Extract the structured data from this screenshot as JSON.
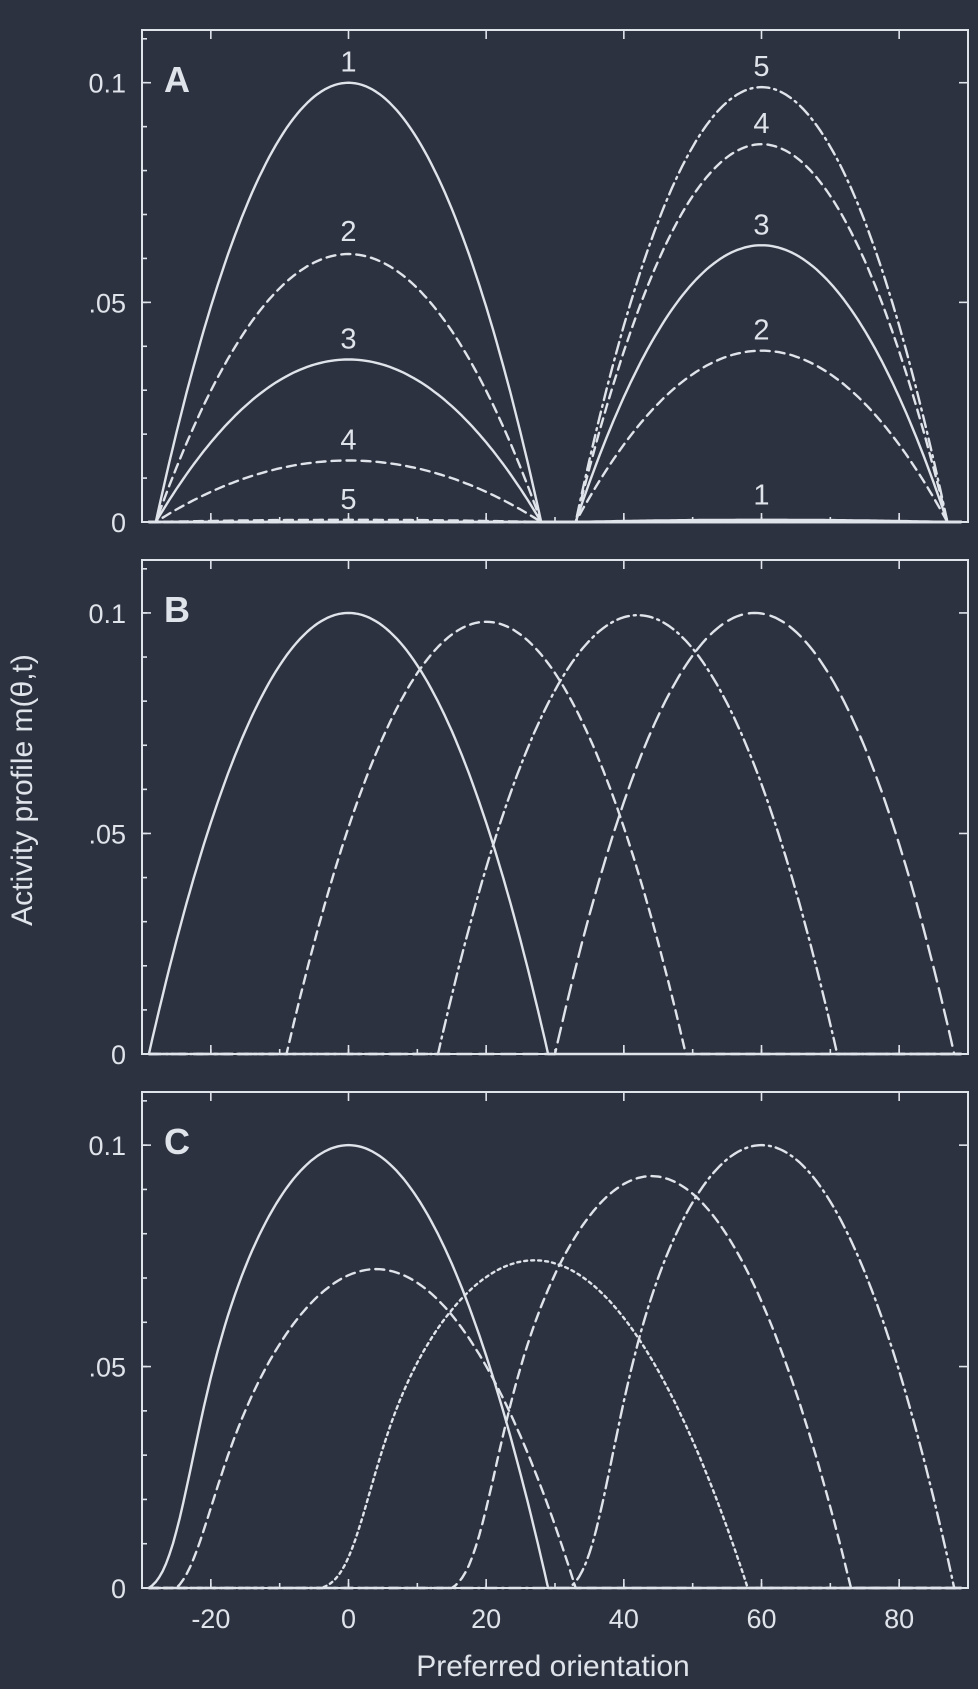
{
  "colors": {
    "background": "#2d3240",
    "ink": "#dfe3ea"
  },
  "axes": {
    "xlabel": "Preferred orientation",
    "ylabel": "Activity profile m(θ,t)",
    "xlim": [
      -30,
      90
    ],
    "ylim": [
      0,
      0.112
    ],
    "x_ticks": [
      -20,
      0,
      20,
      40,
      60,
      80
    ],
    "x_tick_labels": [
      "-20",
      "0",
      "20",
      "40",
      "60",
      "80"
    ],
    "y_ticks": [
      0,
      0.05,
      0.1
    ],
    "y_tick_labels": [
      "0",
      ".05",
      "0.1"
    ]
  },
  "chart_data": [
    {
      "type": "line",
      "panel_label": "A",
      "series": [
        {
          "style": "solid",
          "label": "1",
          "center": 0,
          "width": 28,
          "amplitude": 0.1,
          "label_x": 0,
          "label_y": 0.1025
        },
        {
          "style": "dashed",
          "label": "2",
          "center": 0,
          "width": 28,
          "amplitude": 0.061,
          "label_x": 0,
          "label_y": 0.064
        },
        {
          "style": "solid",
          "label": "3",
          "center": 0,
          "width": 28,
          "amplitude": 0.037,
          "label_x": 0,
          "label_y": 0.0395
        },
        {
          "style": "dashed",
          "label": "4",
          "center": 0,
          "width": 28,
          "amplitude": 0.014,
          "label_x": 0,
          "label_y": 0.0165
        },
        {
          "style": "dashed",
          "label": "5",
          "center": 0,
          "width": 28,
          "amplitude": 0.0005,
          "label_x": 0,
          "label_y": 0.003
        },
        {
          "style": "solid",
          "label": "1",
          "center": 60,
          "width": 27,
          "amplitude": 0.0005,
          "label_x": 60,
          "label_y": 0.004
        },
        {
          "style": "dashed",
          "label": "2",
          "center": 60,
          "width": 27,
          "amplitude": 0.039,
          "label_x": 60,
          "label_y": 0.0415
        },
        {
          "style": "solid",
          "label": "3",
          "center": 60,
          "width": 27,
          "amplitude": 0.063,
          "label_x": 60,
          "label_y": 0.0655
        },
        {
          "style": "dashed",
          "label": "4",
          "center": 60,
          "width": 27,
          "amplitude": 0.086,
          "label_x": 60,
          "label_y": 0.0885
        },
        {
          "style": "dashdot",
          "label": "5",
          "center": 60,
          "width": 27,
          "amplitude": 0.099,
          "label_x": 60,
          "label_y": 0.1015
        }
      ]
    },
    {
      "type": "line",
      "panel_label": "B",
      "series": [
        {
          "style": "solid",
          "center": 0,
          "width": 29,
          "amplitude": 0.1
        },
        {
          "style": "dashed",
          "center": 20,
          "width": 29,
          "amplitude": 0.098
        },
        {
          "style": "dashdot",
          "center": 42,
          "width": 29,
          "amplitude": 0.0995
        },
        {
          "style": "longdash",
          "center": 59,
          "width": 29,
          "amplitude": 0.1
        }
      ]
    },
    {
      "type": "line",
      "panel_label": "C",
      "series": [
        {
          "style": "solid",
          "center": 0,
          "width": 29,
          "amplitude": 0.1,
          "onset": -29
        },
        {
          "style": "dashed",
          "center": 4,
          "width": 29,
          "amplitude": 0.072,
          "onset": -27
        },
        {
          "style": "dotted",
          "center": 27,
          "width": 31,
          "amplitude": 0.074,
          "onset": -3
        },
        {
          "style": "dashed",
          "center": 44,
          "width": 29,
          "amplitude": 0.093,
          "onset": 15
        },
        {
          "style": "dashdot",
          "center": 60,
          "width": 28,
          "amplitude": 0.1,
          "onset": 32
        }
      ]
    }
  ]
}
